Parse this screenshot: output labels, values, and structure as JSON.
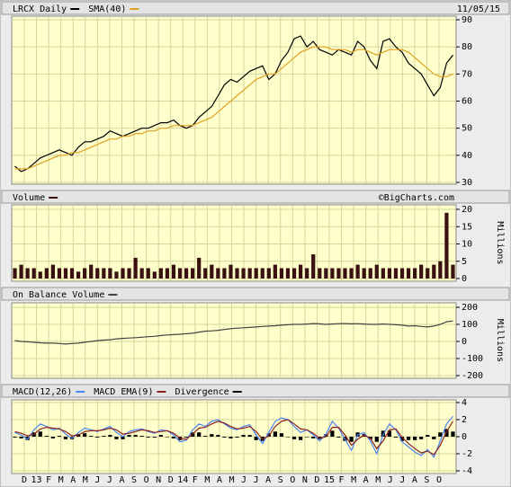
{
  "chart_data": [
    {
      "type": "line",
      "date": "11/05/15",
      "ylim": [
        30,
        90
      ],
      "yticks": [
        30,
        40,
        50,
        60,
        70,
        80,
        90
      ],
      "series": [
        {
          "name": "LRCX Daily",
          "color": "#000000",
          "values": [
            36,
            34,
            35,
            37,
            39,
            40,
            41,
            42,
            41,
            40,
            43,
            45,
            45,
            46,
            47,
            49,
            48,
            47,
            48,
            49,
            50,
            50,
            51,
            52,
            52,
            53,
            51,
            50,
            51,
            54,
            56,
            58,
            62,
            66,
            68,
            67,
            69,
            71,
            72,
            73,
            68,
            70,
            75,
            78,
            83,
            84,
            80,
            82,
            79,
            78,
            77,
            79,
            78,
            77,
            82,
            80,
            75,
            72,
            82,
            83,
            80,
            78,
            74,
            72,
            70,
            66,
            62,
            65,
            74,
            77
          ]
        },
        {
          "name": "SMA(40)",
          "color": "#e0a020",
          "values": [
            35,
            35,
            35,
            36,
            37,
            38,
            39,
            40,
            40,
            41,
            41,
            42,
            43,
            44,
            45,
            46,
            46,
            47,
            47,
            48,
            48,
            49,
            49,
            50,
            50,
            51,
            51,
            51,
            51,
            52,
            53,
            54,
            56,
            58,
            60,
            62,
            64,
            66,
            68,
            69,
            70,
            70,
            72,
            74,
            76,
            78,
            79,
            80,
            80,
            80,
            79,
            79,
            79,
            78,
            79,
            79,
            78,
            77,
            78,
            79,
            79,
            79,
            78,
            76,
            74,
            72,
            70,
            69,
            69,
            70
          ]
        }
      ]
    },
    {
      "type": "bar",
      "source": "©BigCharts.com",
      "y_label": "Millions",
      "ylim": [
        0,
        20
      ],
      "yticks": [
        0,
        5,
        10,
        15,
        20
      ],
      "series": [
        {
          "name": "Volume",
          "color": "#3a1010",
          "values": [
            3,
            4,
            3,
            3,
            2,
            3,
            4,
            3,
            3,
            3,
            2,
            3,
            4,
            3,
            3,
            3,
            2,
            3,
            3,
            6,
            3,
            3,
            2,
            3,
            3,
            4,
            3,
            3,
            3,
            6,
            3,
            4,
            3,
            3,
            4,
            3,
            3,
            3,
            3,
            3,
            3,
            4,
            3,
            3,
            3,
            4,
            3,
            7,
            3,
            3,
            3,
            3,
            3,
            3,
            4,
            3,
            3,
            4,
            3,
            3,
            3,
            3,
            3,
            3,
            4,
            3,
            4,
            5,
            19,
            4
          ]
        }
      ]
    },
    {
      "type": "line",
      "y_label": "Millions",
      "ylim": [
        -200,
        200
      ],
      "yticks": [
        -200,
        -100,
        0,
        100,
        200
      ],
      "series": [
        {
          "name": "On Balance Volume",
          "color": "#444444",
          "values": [
            5,
            0,
            -2,
            -5,
            -8,
            -10,
            -10,
            -12,
            -15,
            -12,
            -10,
            -5,
            0,
            5,
            8,
            10,
            15,
            18,
            20,
            22,
            25,
            28,
            30,
            35,
            38,
            40,
            42,
            45,
            48,
            55,
            60,
            62,
            65,
            70,
            75,
            78,
            80,
            82,
            85,
            88,
            90,
            92,
            95,
            98,
            100,
            100,
            102,
            105,
            103,
            100,
            102,
            104,
            105,
            103,
            104,
            102,
            100,
            100,
            102,
            100,
            98,
            95,
            90,
            92,
            88,
            85,
            90,
            100,
            115,
            120
          ]
        }
      ]
    },
    {
      "type": "line",
      "ylim": [
        -4,
        4
      ],
      "yticks": [
        -4,
        -2,
        0,
        2,
        4
      ],
      "x_axis_labels": [
        "D",
        "13",
        "F",
        "M",
        "A",
        "M",
        "J",
        "J",
        "A",
        "S",
        "O",
        "N",
        "D",
        "14",
        "F",
        "M",
        "A",
        "M",
        "J",
        "J",
        "A",
        "S",
        "O",
        "N",
        "D",
        "15",
        "F",
        "M",
        "A",
        "M",
        "J",
        "J",
        "A",
        "S",
        "O"
      ],
      "series": [
        {
          "name": "MACD(12,26)",
          "color": "#4a86f0",
          "values": [
            0.5,
            0.2,
            -0.3,
            0.8,
            1.5,
            1.2,
            0.8,
            1.0,
            0.3,
            -0.2,
            0.5,
            1.0,
            0.8,
            0.6,
            0.9,
            1.2,
            0.5,
            0.0,
            0.6,
            0.8,
            0.9,
            0.6,
            0.4,
            0.8,
            0.7,
            0.2,
            -0.6,
            -0.4,
            0.8,
            1.5,
            1.2,
            1.8,
            2.0,
            1.5,
            1.0,
            0.8,
            1.2,
            1.4,
            0.2,
            -0.8,
            0.5,
            1.8,
            2.2,
            2.0,
            1.2,
            0.5,
            0.8,
            0.2,
            -0.5,
            0.3,
            1.8,
            1.0,
            -0.3,
            -1.6,
            0.2,
            0.5,
            -0.5,
            -2.0,
            0.2,
            1.5,
            0.8,
            -0.6,
            -1.2,
            -1.8,
            -2.2,
            -1.5,
            -2.4,
            -0.5,
            1.5,
            2.4
          ]
        },
        {
          "name": "MACD EMA(9)",
          "color": "#8b2020",
          "values": [
            0.6,
            0.4,
            0.1,
            0.3,
            0.9,
            1.1,
            1.0,
            0.9,
            0.6,
            0.1,
            0.2,
            0.6,
            0.7,
            0.7,
            0.8,
            1.0,
            0.8,
            0.3,
            0.4,
            0.6,
            0.8,
            0.7,
            0.5,
            0.6,
            0.7,
            0.4,
            -0.2,
            -0.3,
            0.3,
            1.0,
            1.1,
            1.5,
            1.8,
            1.6,
            1.2,
            0.9,
            1.0,
            1.2,
            0.6,
            -0.3,
            0.1,
            1.2,
            1.8,
            2.0,
            1.5,
            0.9,
            0.8,
            0.4,
            -0.2,
            0.0,
            1.1,
            1.1,
            0.2,
            -1.0,
            -0.3,
            0.2,
            -0.2,
            -1.4,
            -0.5,
            0.8,
            0.9,
            -0.1,
            -0.8,
            -1.4,
            -1.9,
            -1.7,
            -2.1,
            -1.0,
            0.6,
            1.8
          ]
        },
        {
          "name": "Divergence",
          "type": "bar",
          "color": "#000000",
          "values": [
            -0.1,
            -0.2,
            -0.4,
            0.5,
            0.6,
            0.1,
            -0.2,
            0.1,
            -0.3,
            -0.3,
            0.3,
            0.4,
            0.1,
            -0.1,
            0.1,
            0.2,
            -0.3,
            -0.3,
            0.2,
            0.2,
            0.1,
            -0.1,
            -0.1,
            0.2,
            0.0,
            -0.2,
            -0.4,
            -0.1,
            0.5,
            0.5,
            0.1,
            0.3,
            0.2,
            -0.1,
            -0.2,
            -0.1,
            0.2,
            0.2,
            -0.4,
            -0.5,
            0.4,
            0.6,
            0.4,
            0.0,
            -0.3,
            -0.4,
            0.0,
            -0.2,
            -0.3,
            0.3,
            0.7,
            -0.1,
            -0.5,
            -0.6,
            0.5,
            0.3,
            -0.3,
            -0.6,
            0.7,
            0.7,
            -0.1,
            -0.5,
            -0.4,
            -0.4,
            -0.3,
            0.2,
            -0.3,
            0.5,
            0.9,
            0.6
          ]
        }
      ]
    }
  ]
}
